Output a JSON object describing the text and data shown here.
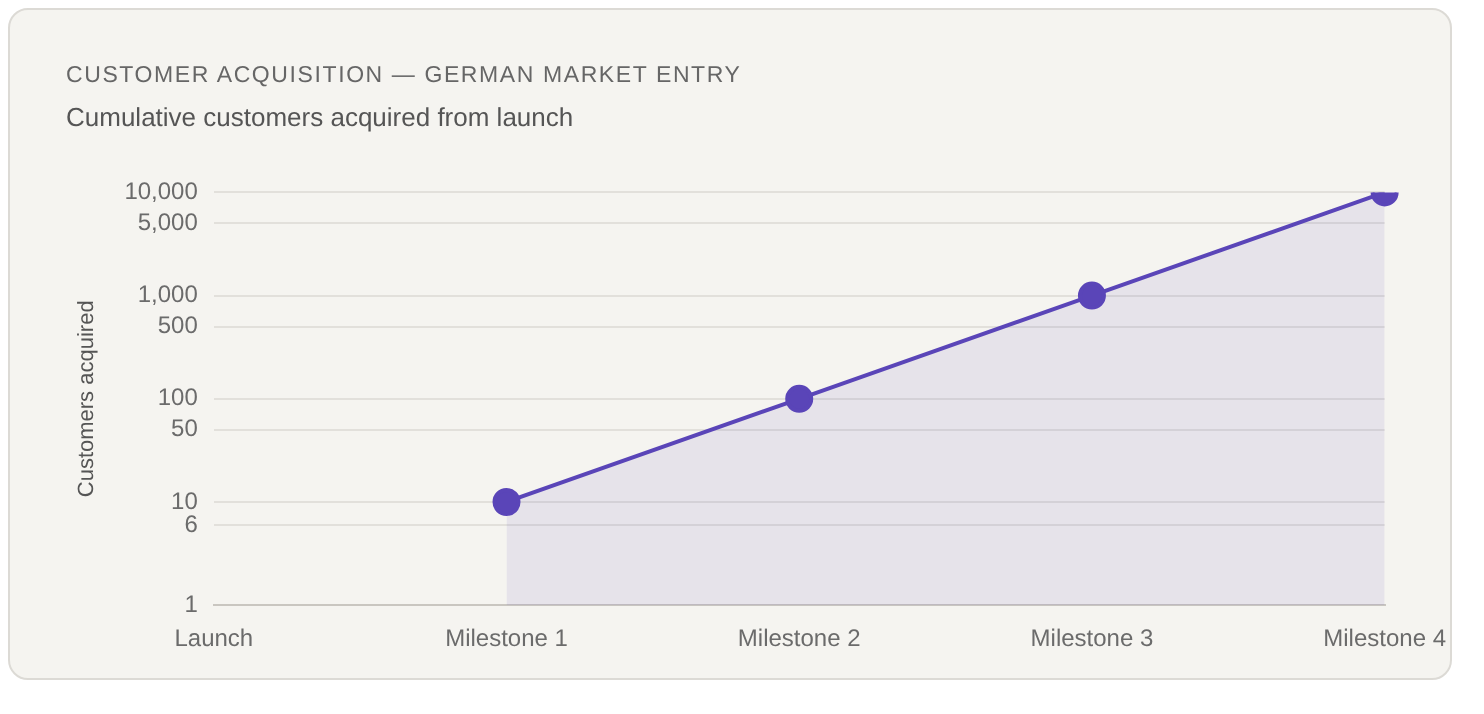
{
  "chart_data": {
    "type": "area",
    "title": "CUSTOMER ACQUISITION — GERMAN MARKET ENTRY",
    "subtitle": "Cumulative customers acquired from launch",
    "ylabel": "Customers acquired",
    "categories": [
      "Launch",
      "Milestone 1",
      "Milestone 2",
      "Milestone 3",
      "Milestone 4"
    ],
    "series": [
      {
        "color": "#5a45b8",
        "values": [
          null,
          10,
          100,
          1000,
          10000
        ]
      }
    ],
    "log": "y",
    "ylim": [
      1,
      10000
    ],
    "yticks": [
      1,
      6,
      10,
      50,
      100,
      500,
      {
        "value": 1000,
        "label": "1,000"
      },
      {
        "value": 5000,
        "label": "5,000"
      },
      {
        "value": 10000,
        "label": "10,000"
      }
    ],
    "grid": "y",
    "legend": false,
    "marker": "circle",
    "line_style": "solid"
  }
}
